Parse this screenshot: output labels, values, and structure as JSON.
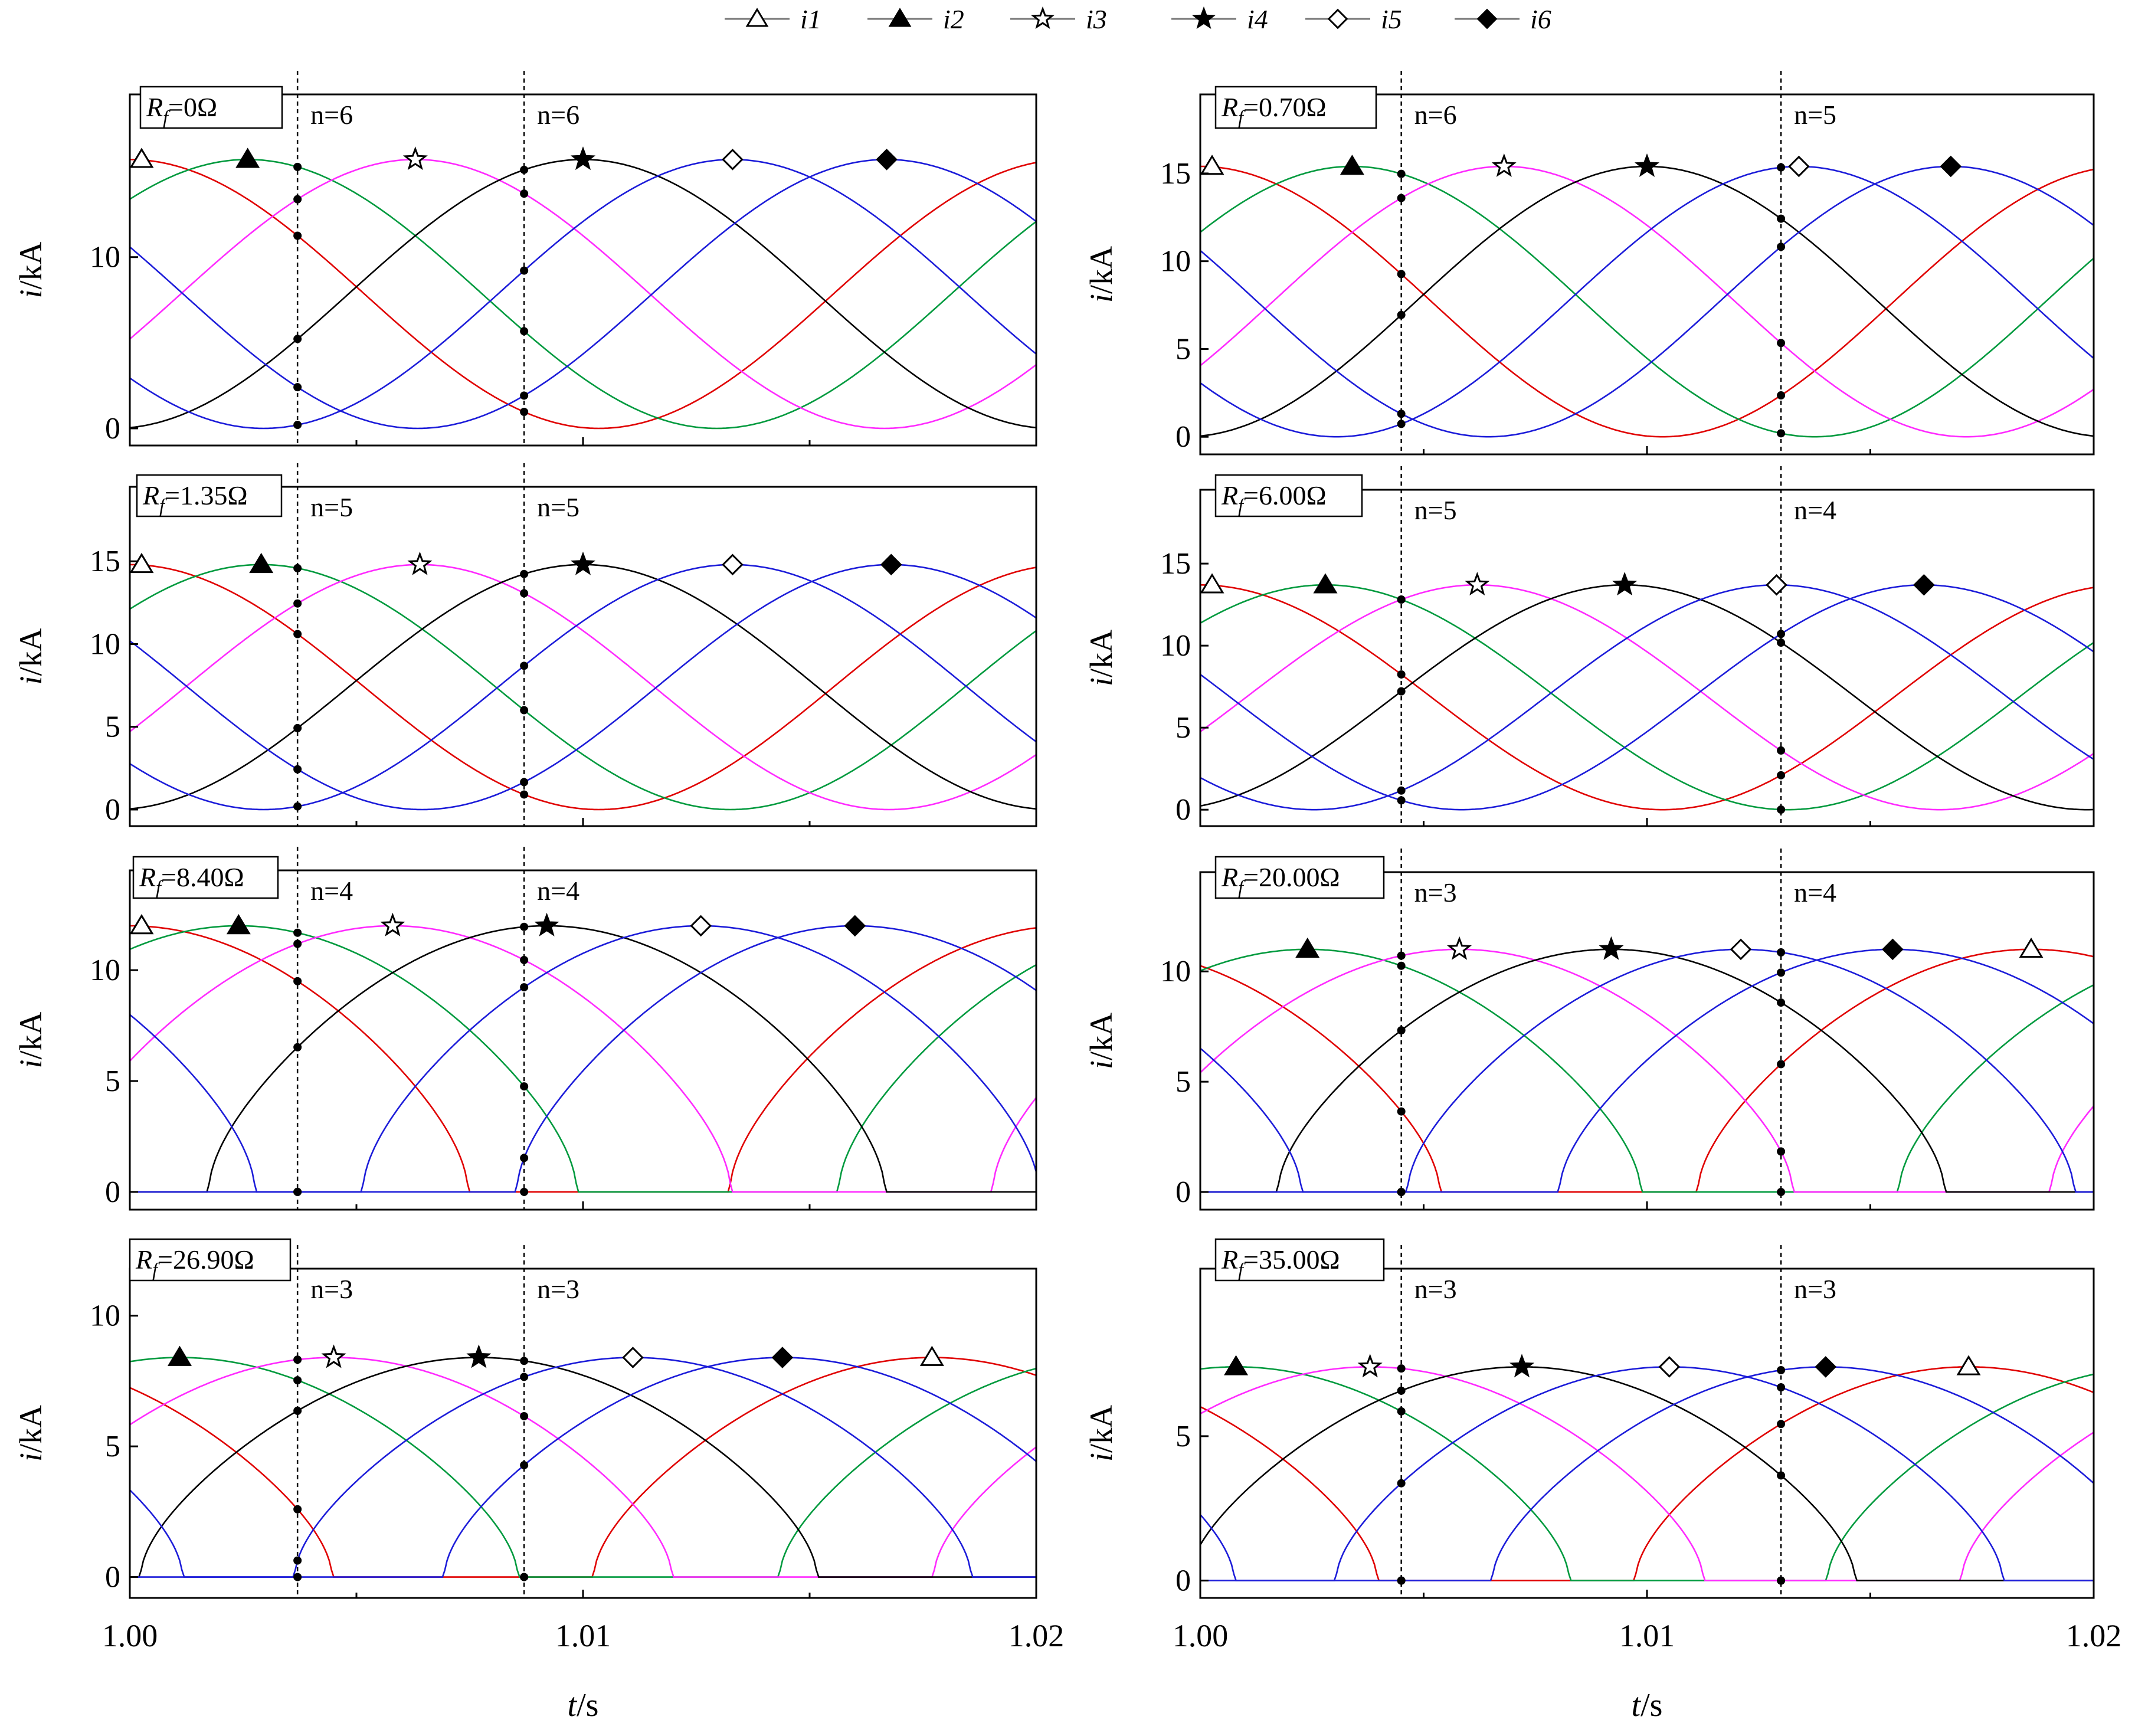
{
  "legend": [
    {
      "name": "i1",
      "color": "#e00000",
      "marker": "triangle-open"
    },
    {
      "name": "i2",
      "color": "#009a3e",
      "marker": "triangle-filled"
    },
    {
      "name": "i3",
      "color": "#ff2bff",
      "marker": "star-open"
    },
    {
      "name": "i4",
      "color": "#000000",
      "marker": "star-filled"
    },
    {
      "name": "i5",
      "color": "#1c1cd9",
      "marker": "diamond-open"
    },
    {
      "name": "i6",
      "color": "#1c1cd9",
      "marker": "diamond-filled"
    }
  ],
  "colors": {
    "i1": "#e00000",
    "i2": "#009a3e",
    "i3": "#ff2bff",
    "i4": "#000000",
    "i5": "#1c1cd9",
    "i6": "#1c1cd9"
  },
  "xlabel": "t/s",
  "ylabel": "i/kA",
  "x_ticks": [
    "1.00",
    "1.01",
    "1.02"
  ],
  "chart_data": [
    {
      "type": "line",
      "rf_label": "Rf=0Ω",
      "xlim": [
        1.0,
        1.02
      ],
      "ylim": [
        -1,
        19.5
      ],
      "y_ticks": [
        0,
        10
      ],
      "amplitude": 15.7,
      "period_x": 0.0207,
      "peak_x": [
        1.0,
        1.0026,
        1.0063,
        1.01,
        1.0133,
        1.0167
      ],
      "vlines": [
        1.0037,
        1.0087
      ],
      "n_labels": [
        "n=6",
        "n=6"
      ]
    },
    {
      "type": "line",
      "rf_label": "Rf=0.70Ω",
      "xlim": [
        1.0,
        1.02
      ],
      "ylim": [
        -1,
        19.5
      ],
      "y_ticks": [
        0,
        5,
        10,
        15
      ],
      "amplitude": 15.4,
      "period_x": 0.0207,
      "peak_x": [
        1.0,
        1.0034,
        1.0068,
        1.01,
        1.0134,
        1.0168
      ],
      "vlines": [
        1.0045,
        1.013
      ],
      "n_labels": [
        "n=6",
        "n=5"
      ]
    },
    {
      "type": "line",
      "rf_label": "Rf=1.35Ω",
      "xlim": [
        1.0,
        1.02
      ],
      "ylim": [
        -1,
        19.5
      ],
      "y_ticks": [
        0,
        5,
        10,
        15
      ],
      "amplitude": 14.8,
      "period_x": 0.0207,
      "peak_x": [
        1.0,
        1.0029,
        1.0064,
        1.01,
        1.0133,
        1.0168
      ],
      "vlines": [
        1.0037,
        1.0087
      ],
      "n_labels": [
        "n=5",
        "n=5"
      ]
    },
    {
      "type": "line",
      "rf_label": "Rf=6.00Ω",
      "xlim": [
        1.0,
        1.02
      ],
      "ylim": [
        -1,
        19.5
      ],
      "y_ticks": [
        0,
        5,
        10,
        15
      ],
      "amplitude": 13.7,
      "period_x": 0.0207,
      "peak_x": [
        1.0,
        1.0028,
        1.0062,
        1.0095,
        1.0129,
        1.0162
      ],
      "vlines": [
        1.0045,
        1.013
      ],
      "n_labels": [
        "n=5",
        "n=4"
      ]
    },
    {
      "type": "line",
      "rf_label": "Rf=8.40Ω",
      "xlim": [
        1.0,
        1.02
      ],
      "ylim": [
        -0.8,
        14.5
      ],
      "y_ticks": [
        0,
        5,
        10
      ],
      "amplitude": 12.0,
      "period_x": 0.0207,
      "peak_x": [
        1.0,
        1.0024,
        1.0058,
        1.0092,
        1.0126,
        1.016
      ],
      "vlines": [
        1.0037,
        1.0087
      ],
      "n_labels": [
        "n=4",
        "n=4"
      ]
    },
    {
      "type": "line",
      "rf_label": "Rf=20.00Ω",
      "xlim": [
        1.0,
        1.02
      ],
      "ylim": [
        -0.8,
        14.5
      ],
      "y_ticks": [
        0,
        5,
        10
      ],
      "amplitude": 11.0,
      "period_x": 0.0207,
      "peak_x": [
        1.0186,
        1.0024,
        1.0058,
        1.0092,
        1.0121,
        1.0155
      ],
      "vlines": [
        1.0045,
        1.013
      ],
      "n_labels": [
        "n=3",
        "n=4"
      ]
    },
    {
      "type": "line",
      "rf_label": "Rf=26.90Ω",
      "xlim": [
        1.0,
        1.02
      ],
      "ylim": [
        -0.8,
        11.8
      ],
      "y_ticks": [
        0,
        5,
        10
      ],
      "amplitude": 8.4,
      "period_x": 0.0207,
      "peak_x": [
        1.0177,
        1.0011,
        1.0045,
        1.0077,
        1.0111,
        1.0144
      ],
      "vlines": [
        1.0037,
        1.0087
      ],
      "n_labels": [
        "n=3",
        "n=3"
      ]
    },
    {
      "type": "line",
      "rf_label": "Rf=35.00Ω",
      "xlim": [
        1.0,
        1.02
      ],
      "ylim": [
        -0.6,
        10.8
      ],
      "y_ticks": [
        0,
        5
      ],
      "amplitude": 7.4,
      "period_x": 0.0207,
      "peak_x": [
        1.0172,
        1.0008,
        1.0038,
        1.0072,
        1.0105,
        1.014
      ],
      "vlines": [
        1.0045,
        1.013
      ],
      "n_labels": [
        "n=3",
        "n=3"
      ]
    }
  ]
}
